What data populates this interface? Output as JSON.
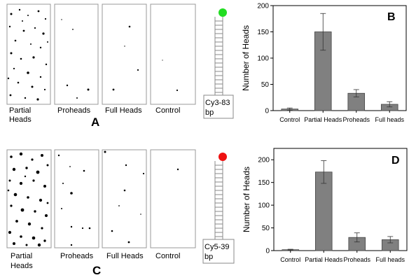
{
  "panels_top": {
    "labels": [
      {
        "line1": "Partial",
        "line2": "Heads"
      },
      {
        "line1": "Proheads",
        "line2": ""
      },
      {
        "line1": "Full Heads",
        "line2": ""
      },
      {
        "line1": "Control",
        "line2": ""
      }
    ],
    "letter": "A"
  },
  "panels_bottom": {
    "labels": [
      {
        "line1": "Partial",
        "line2": "Heads"
      },
      {
        "line1": "Proheads",
        "line2": ""
      },
      {
        "line1": "Full Heads",
        "line2": ""
      },
      {
        "line1": "Control",
        "line2": ""
      }
    ],
    "letter": "C"
  },
  "dna_top": {
    "line1": "Cy3-83",
    "line2": "bp",
    "bead_color": "#22dd22"
  },
  "dna_bottom": {
    "line1": "Cy5-39",
    "line2": "bp",
    "bead_color": "#ee1111"
  },
  "chart_data": [
    {
      "type": "bar",
      "panel_letter": "B",
      "categories": [
        "Control",
        "Partial Heads",
        "Proheads",
        "Full heads"
      ],
      "values": [
        3,
        150,
        33,
        12
      ],
      "errors": [
        2,
        35,
        7,
        5
      ],
      "title": "",
      "xlabel": "",
      "ylabel": "Number of Heads",
      "ylim": [
        0,
        200
      ],
      "yticks": [
        0,
        50,
        100,
        150,
        200
      ],
      "bar_color": "#808080"
    },
    {
      "type": "bar",
      "panel_letter": "D",
      "categories": [
        "Control",
        "Partial Heads",
        "Proheads",
        "Full heads"
      ],
      "values": [
        2,
        173,
        29,
        24
      ],
      "errors": [
        1,
        25,
        10,
        7
      ],
      "title": "",
      "xlabel": "",
      "ylabel": "Number of Heads",
      "ylim": [
        0,
        225
      ],
      "yticks": [
        0,
        50,
        100,
        150,
        200
      ],
      "bar_color": "#808080"
    }
  ]
}
